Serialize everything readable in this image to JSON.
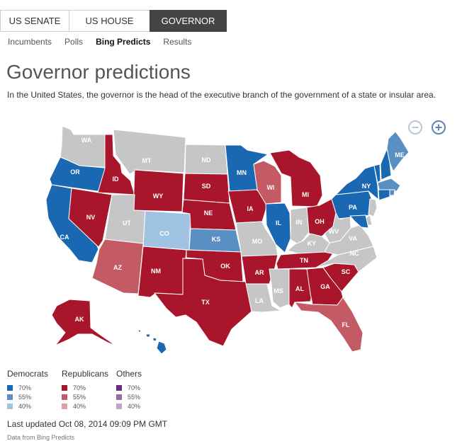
{
  "tabs": [
    {
      "label": "US SENATE",
      "active": false
    },
    {
      "label": "US HOUSE",
      "active": false
    },
    {
      "label": "GOVERNOR",
      "active": true
    }
  ],
  "subnav": [
    {
      "label": "Incumbents",
      "active": false
    },
    {
      "label": "Polls",
      "active": false
    },
    {
      "label": "Bing Predicts",
      "active": true
    },
    {
      "label": "Results",
      "active": false
    }
  ],
  "title": "Governor predictions",
  "description": "In the United States, the governor is the head of the executive branch of the government of a state or insular area.",
  "colors": {
    "dem70": "#1a67b2",
    "dem55": "#5a8fc4",
    "dem40": "#9fc3e1",
    "rep70": "#a9162c",
    "rep55": "#c45a64",
    "rep40": "#dfa0a9",
    "oth70": "#6f2b7f",
    "oth55": "#9d6aa8",
    "oth40": "#c5a3cc",
    "none": "#c6c6c6"
  },
  "legend": [
    {
      "heading": "Democrats",
      "items": [
        {
          "pct": "70%",
          "color": "dem70"
        },
        {
          "pct": "55%",
          "color": "dem55"
        },
        {
          "pct": "40%",
          "color": "dem40"
        }
      ]
    },
    {
      "heading": "Republicans",
      "items": [
        {
          "pct": "70%",
          "color": "rep70"
        },
        {
          "pct": "55%",
          "color": "rep55"
        },
        {
          "pct": "40%",
          "color": "rep40"
        }
      ]
    },
    {
      "heading": "Others",
      "items": [
        {
          "pct": "70%",
          "color": "oth70"
        },
        {
          "pct": "55%",
          "color": "oth55"
        },
        {
          "pct": "40%",
          "color": "oth40"
        }
      ]
    }
  ],
  "states": [
    {
      "abbr": "WA",
      "class": "none"
    },
    {
      "abbr": "OR",
      "class": "dem70"
    },
    {
      "abbr": "CA",
      "class": "dem70"
    },
    {
      "abbr": "ID",
      "class": "rep70"
    },
    {
      "abbr": "NV",
      "class": "rep70"
    },
    {
      "abbr": "MT",
      "class": "none"
    },
    {
      "abbr": "WY",
      "class": "rep70"
    },
    {
      "abbr": "UT",
      "class": "none"
    },
    {
      "abbr": "AZ",
      "class": "rep55"
    },
    {
      "abbr": "CO",
      "class": "dem40"
    },
    {
      "abbr": "NM",
      "class": "rep70"
    },
    {
      "abbr": "ND",
      "class": "none"
    },
    {
      "abbr": "SD",
      "class": "rep70"
    },
    {
      "abbr": "NE",
      "class": "rep70"
    },
    {
      "abbr": "KS",
      "class": "dem55"
    },
    {
      "abbr": "OK",
      "class": "rep70"
    },
    {
      "abbr": "TX",
      "class": "rep70"
    },
    {
      "abbr": "MN",
      "class": "dem70"
    },
    {
      "abbr": "IA",
      "class": "rep70"
    },
    {
      "abbr": "MO",
      "class": "none"
    },
    {
      "abbr": "AR",
      "class": "rep70"
    },
    {
      "abbr": "LA",
      "class": "none"
    },
    {
      "abbr": "WI",
      "class": "rep55"
    },
    {
      "abbr": "IL",
      "class": "dem70"
    },
    {
      "abbr": "MI",
      "class": "rep70"
    },
    {
      "abbr": "IN",
      "class": "none"
    },
    {
      "abbr": "OH",
      "class": "rep70"
    },
    {
      "abbr": "KY",
      "class": "none"
    },
    {
      "abbr": "TN",
      "class": "rep70"
    },
    {
      "abbr": "MS",
      "class": "none"
    },
    {
      "abbr": "AL",
      "class": "rep70"
    },
    {
      "abbr": "GA",
      "class": "rep70"
    },
    {
      "abbr": "FL",
      "class": "rep55"
    },
    {
      "abbr": "SC",
      "class": "rep70"
    },
    {
      "abbr": "NC",
      "class": "none"
    },
    {
      "abbr": "VA",
      "class": "none"
    },
    {
      "abbr": "WV",
      "class": "none"
    },
    {
      "abbr": "PA",
      "class": "dem70"
    },
    {
      "abbr": "NY",
      "class": "dem70"
    },
    {
      "abbr": "ME",
      "class": "dem55"
    },
    {
      "abbr": "AK",
      "class": "rep70"
    },
    {
      "abbr": "HI",
      "class": "dem70"
    },
    {
      "abbr": "VT",
      "class": "dem70"
    },
    {
      "abbr": "NH",
      "class": "dem70"
    },
    {
      "abbr": "MA",
      "class": "dem55"
    },
    {
      "abbr": "RI",
      "class": "dem55"
    },
    {
      "abbr": "CT",
      "class": "dem70"
    },
    {
      "abbr": "NJ",
      "class": "none"
    },
    {
      "abbr": "DE",
      "class": "none"
    },
    {
      "abbr": "MD",
      "class": "dem70"
    }
  ],
  "last_updated": "Last updated Oct 08, 2014 09:09 PM GMT",
  "source": "Data from Bing Predicts"
}
